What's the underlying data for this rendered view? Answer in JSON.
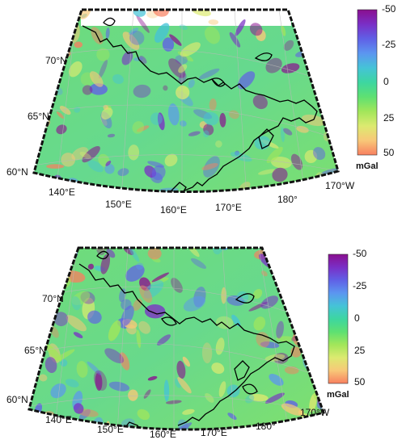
{
  "panels": [
    {
      "id": "top",
      "lat_labels": [
        "70°N",
        "65°N",
        "60°N"
      ],
      "lon_labels": [
        "140°E",
        "150°E",
        "160°E",
        "170°E",
        "180°",
        "170°W"
      ],
      "colorbar": {
        "ticks": [
          "-50",
          "-25",
          "0",
          "25",
          "50"
        ],
        "unit": "mGal"
      }
    },
    {
      "id": "bottom",
      "lat_labels": [
        "70°N",
        "65°N",
        "60°N"
      ],
      "lon_labels": [
        "140°E",
        "150°E",
        "160°E",
        "170°E",
        "180°",
        "170°W"
      ],
      "colorbar": {
        "ticks": [
          "-50",
          "-25",
          "0",
          "25",
          "50"
        ],
        "unit": "mGal"
      }
    }
  ],
  "colors": {
    "scale": [
      "#8a0f8f",
      "#7a2fc6",
      "#6060e6",
      "#5c96f0",
      "#45c3d7",
      "#3dd6a0",
      "#5ee072",
      "#a2e65a",
      "#dcea70",
      "#f8c878",
      "#f88060"
    ],
    "coastline": "#000000",
    "frame": "#111111"
  }
}
